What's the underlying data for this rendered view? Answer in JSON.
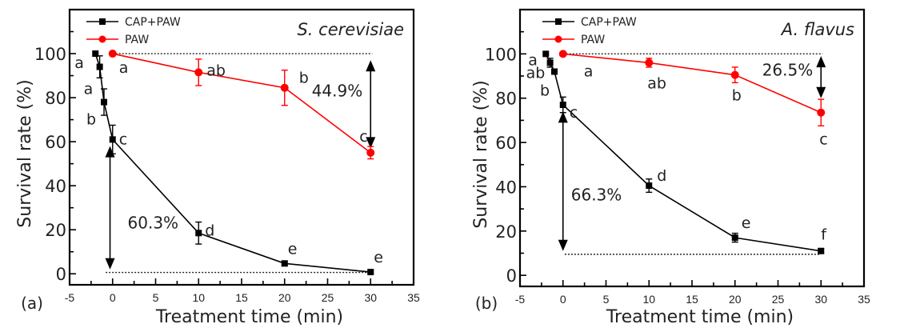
{
  "chart_data": [
    {
      "type": "line",
      "panel_label": "(a)",
      "title": "S. cerevisiae",
      "xlabel": "Treatment time (min)",
      "ylabel": "Survival rate (%)",
      "xlim": [
        -5,
        35
      ],
      "ylim": [
        -5,
        120
      ],
      "xticks": [
        -5,
        0,
        5,
        10,
        15,
        20,
        25,
        30,
        35
      ],
      "yticks": [
        0,
        20,
        40,
        60,
        80,
        100
      ],
      "legend": [
        "CAP+PAW",
        "PAW"
      ],
      "legend_position": "top-left",
      "series": [
        {
          "name": "CAP+PAW",
          "color": "#000000",
          "marker": "square",
          "x": [
            -2,
            -1.5,
            -1,
            0,
            10,
            20,
            30
          ],
          "y": [
            100,
            94,
            78,
            61,
            18.5,
            4.7,
            0.8
          ],
          "err": [
            0,
            5,
            6,
            6.5,
            5,
            1,
            0.5
          ],
          "labels": [
            "a",
            "a",
            "a",
            "c",
            "d",
            "e",
            "e"
          ]
        },
        {
          "name": "PAW",
          "color": "#ff0000",
          "marker": "circle",
          "x": [
            0,
            10,
            20,
            30
          ],
          "y": [
            100,
            91.5,
            84.5,
            55
          ],
          "err": [
            0,
            6,
            8,
            2.8
          ],
          "labels": [
            "a",
            "ab",
            "b",
            "c"
          ]
        }
      ],
      "extra_point_labels": [
        "b"
      ],
      "reference_lines": [
        100,
        0.6
      ],
      "annotations": [
        {
          "text": "44.9%",
          "from": 97,
          "to": 57,
          "x": 30
        },
        {
          "text": "60.3%",
          "from": 58,
          "to": 2,
          "x": -0.3
        }
      ]
    },
    {
      "type": "line",
      "panel_label": "(b)",
      "title": "A. flavus",
      "xlabel": "Treatment time (min)",
      "ylabel": "Survival rate (%)",
      "xlim": [
        -5,
        35
      ],
      "ylim": [
        -5,
        120
      ],
      "xticks": [
        -5,
        0,
        5,
        10,
        15,
        20,
        25,
        30,
        35
      ],
      "yticks": [
        0,
        20,
        40,
        60,
        80,
        100
      ],
      "legend": [
        "CAP+PAW",
        "PAW"
      ],
      "legend_position": "top-left",
      "series": [
        {
          "name": "CAP+PAW",
          "color": "#000000",
          "marker": "square",
          "x": [
            -2,
            -1.5,
            -1,
            0,
            10,
            20,
            30
          ],
          "y": [
            100,
            96,
            92,
            77,
            40.5,
            17,
            11
          ],
          "err": [
            0,
            2,
            1,
            3.5,
            3,
            2,
            1
          ],
          "labels": [
            "a",
            "ab",
            "b",
            "c",
            "d",
            "e",
            "f"
          ]
        },
        {
          "name": "PAW",
          "color": "#ff0000",
          "marker": "circle",
          "x": [
            0,
            10,
            20,
            30
          ],
          "y": [
            100,
            96,
            90.5,
            73.5
          ],
          "err": [
            0,
            2,
            3.5,
            6
          ],
          "labels": [
            "a",
            "ab",
            "b",
            "c"
          ]
        }
      ],
      "reference_lines": [
        100,
        9.5
      ],
      "annotations": [
        {
          "text": "26.5%",
          "from": 99,
          "to": 80,
          "x": 30
        },
        {
          "text": "66.3%",
          "from": 74,
          "to": 11,
          "x": 0
        }
      ]
    }
  ]
}
